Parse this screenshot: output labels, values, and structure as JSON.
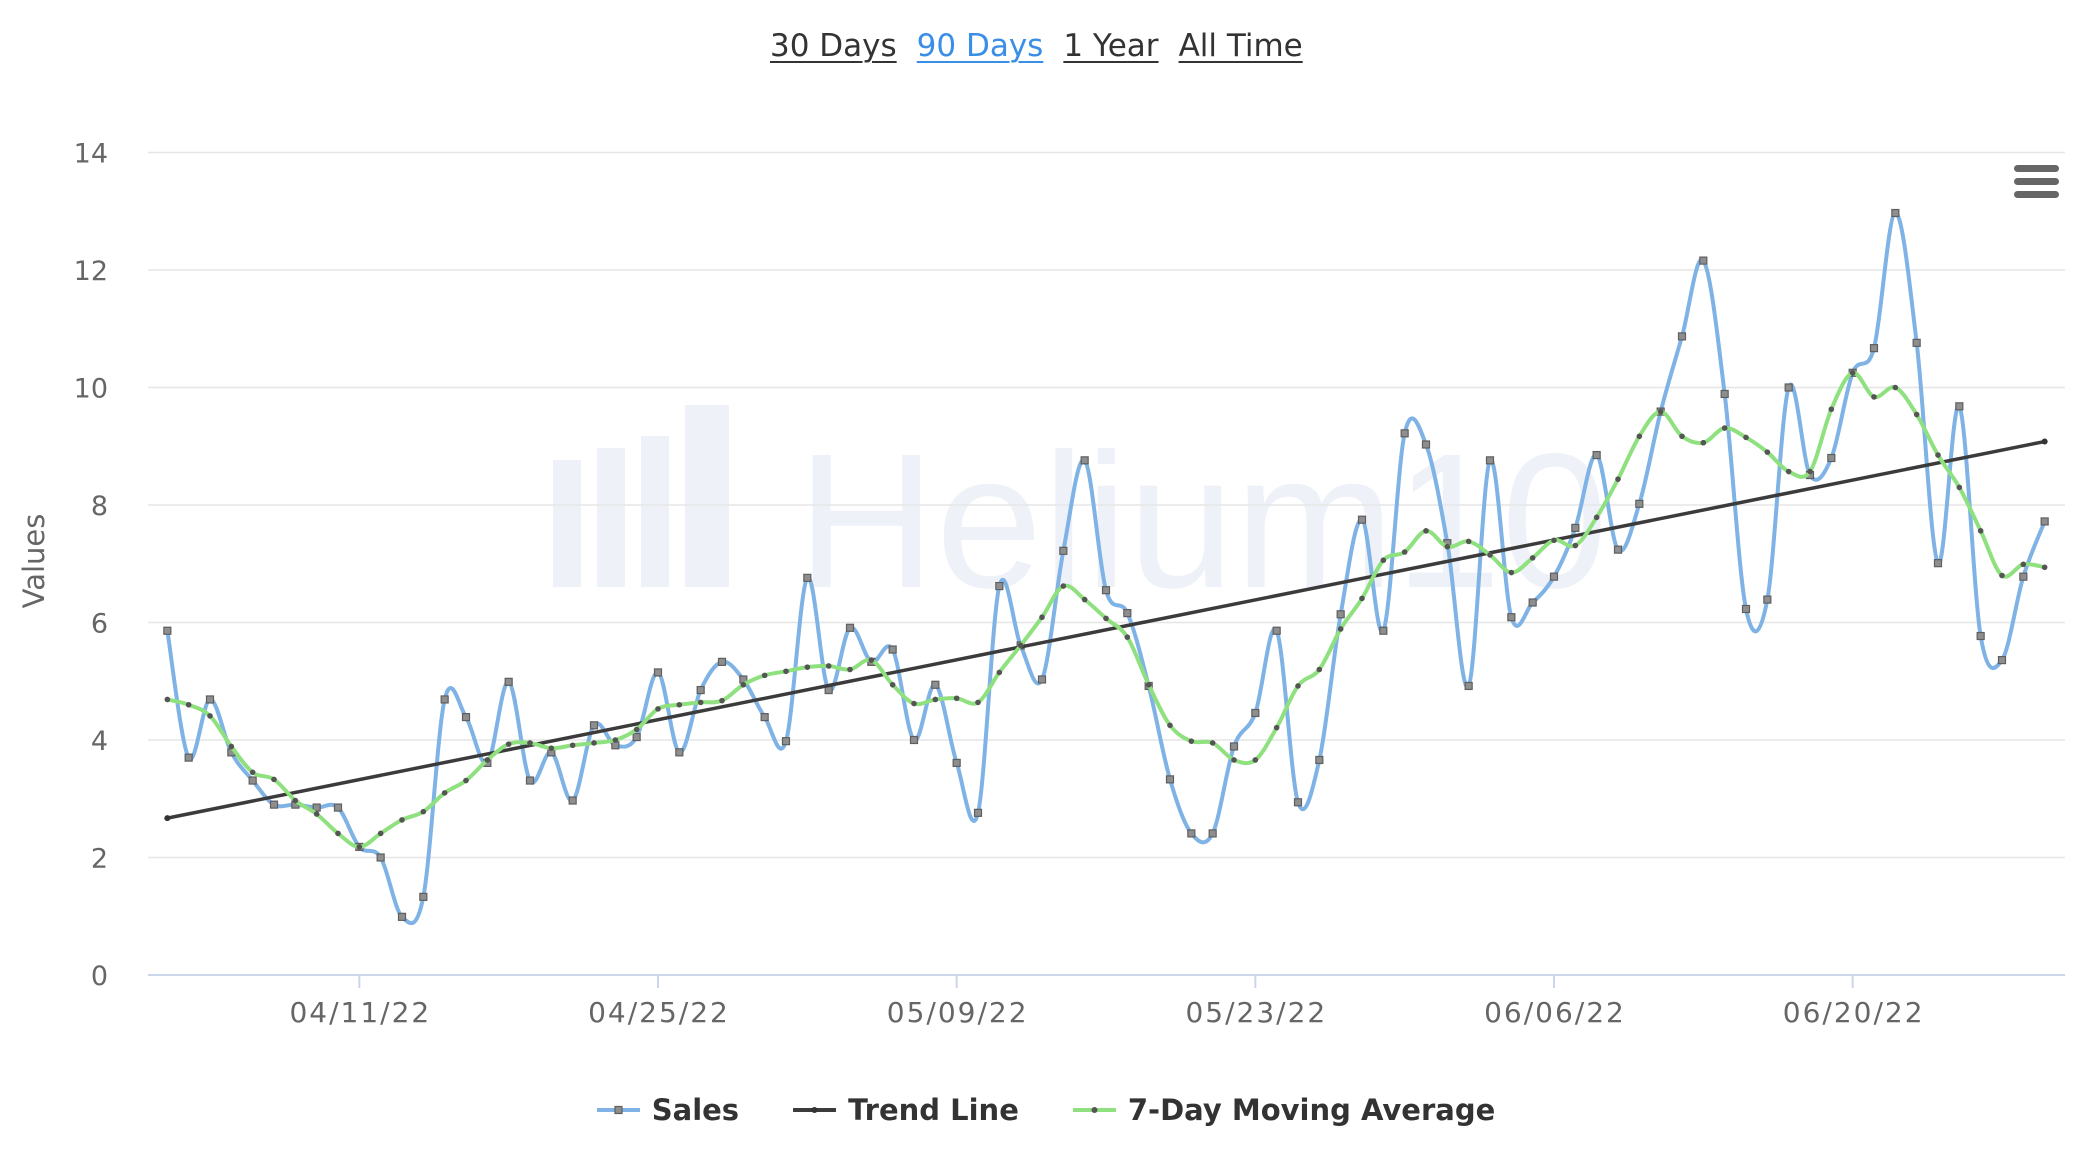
{
  "range_selector": {
    "buttons": [
      {
        "label": "30 Days",
        "selected": false
      },
      {
        "label": "90 Days",
        "selected": true
      },
      {
        "label": "1 Year",
        "selected": false
      },
      {
        "label": "All Time",
        "selected": false
      }
    ]
  },
  "colors": {
    "range_button": "#333333",
    "range_button_selected": "#3a8ee6"
  },
  "chart_menu": {
    "icon": "hamburger-menu-icon"
  },
  "watermark": {
    "text": "Helium10",
    "icon": "bar-chart-logo-icon"
  },
  "chart_data": {
    "type": "line",
    "xlabel": "",
    "ylabel": "Values",
    "ylim": [
      0,
      14
    ],
    "yticks": [
      0,
      2,
      4,
      6,
      8,
      10,
      12,
      14
    ],
    "xlim": [
      "04/01/22",
      "06/30/22"
    ],
    "xticks": [
      "04/11/22",
      "04/25/22",
      "05/09/22",
      "05/23/22",
      "06/06/22",
      "06/20/22"
    ],
    "grid": true,
    "legend": "bottom-center",
    "x": [
      "04/02/22",
      "04/03/22",
      "04/04/22",
      "04/05/22",
      "04/06/22",
      "04/07/22",
      "04/08/22",
      "04/09/22",
      "04/10/22",
      "04/11/22",
      "04/12/22",
      "04/13/22",
      "04/14/22",
      "04/15/22",
      "04/16/22",
      "04/17/22",
      "04/18/22",
      "04/19/22",
      "04/20/22",
      "04/21/22",
      "04/22/22",
      "04/23/22",
      "04/24/22",
      "04/25/22",
      "04/26/22",
      "04/27/22",
      "04/28/22",
      "04/29/22",
      "04/30/22",
      "05/01/22",
      "05/02/22",
      "05/03/22",
      "05/04/22",
      "05/05/22",
      "05/06/22",
      "05/07/22",
      "05/08/22",
      "05/09/22",
      "05/10/22",
      "05/11/22",
      "05/12/22",
      "05/13/22",
      "05/14/22",
      "05/15/22",
      "05/16/22",
      "05/17/22",
      "05/18/22",
      "05/19/22",
      "05/20/22",
      "05/21/22",
      "05/22/22",
      "05/23/22",
      "05/24/22",
      "05/25/22",
      "05/26/22",
      "05/27/22",
      "05/28/22",
      "05/29/22",
      "05/30/22",
      "05/31/22",
      "06/01/22",
      "06/02/22",
      "06/03/22",
      "06/04/22",
      "06/05/22",
      "06/06/22",
      "06/07/22",
      "06/08/22",
      "06/09/22",
      "06/10/22",
      "06/11/22",
      "06/12/22",
      "06/13/22",
      "06/14/22",
      "06/15/22",
      "06/16/22",
      "06/17/22",
      "06/18/22",
      "06/19/22",
      "06/20/22",
      "06/21/22",
      "06/22/22",
      "06/23/22",
      "06/24/22",
      "06/25/22",
      "06/26/22",
      "06/27/22",
      "06/28/22",
      "06/29/22"
    ],
    "series": [
      {
        "name": "Sales",
        "color": "#7fb2e5",
        "values": [
          5.86,
          3.7,
          4.69,
          3.79,
          3.31,
          2.9,
          2.9,
          2.85,
          2.85,
          2.18,
          2.0,
          0.99,
          1.33,
          4.69,
          4.39,
          3.61,
          4.99,
          3.31,
          3.79,
          2.97,
          4.25,
          3.91,
          4.05,
          5.15,
          3.79,
          4.85,
          5.33,
          5.03,
          4.39,
          3.98,
          6.76,
          4.85,
          5.91,
          5.33,
          5.54,
          4.0,
          4.94,
          3.61,
          2.76,
          6.62,
          5.61,
          5.03,
          7.22,
          8.76,
          6.55,
          6.16,
          4.92,
          3.33,
          2.41,
          2.41,
          3.89,
          4.46,
          5.86,
          2.94,
          3.66,
          6.14,
          7.75,
          5.86,
          9.22,
          9.03,
          7.35,
          4.92,
          8.76,
          6.09,
          6.34,
          6.78,
          7.61,
          8.85,
          7.24,
          8.02,
          9.59,
          10.87,
          12.16,
          9.89,
          6.23,
          6.39,
          10.0,
          8.51,
          8.8,
          10.25,
          10.67,
          12.97,
          10.76,
          7.01,
          9.68,
          5.77,
          5.36,
          6.78,
          7.72
        ]
      },
      {
        "name": "Trend Line",
        "color": "#3b3b3b",
        "x": [
          "04/02/22",
          "06/29/22"
        ],
        "values": [
          2.67,
          9.08
        ]
      },
      {
        "name": "7-Day Moving Average",
        "color": "#8fe07e",
        "values": [
          4.69,
          4.6,
          4.41,
          3.89,
          3.45,
          3.33,
          2.97,
          2.74,
          2.41,
          2.18,
          2.41,
          2.64,
          2.78,
          3.1,
          3.31,
          3.66,
          3.93,
          3.95,
          3.86,
          3.91,
          3.95,
          4.0,
          4.18,
          4.53,
          4.6,
          4.64,
          4.67,
          4.94,
          5.1,
          5.17,
          5.24,
          5.26,
          5.2,
          5.36,
          4.94,
          4.62,
          4.69,
          4.71,
          4.64,
          5.15,
          5.61,
          6.09,
          6.62,
          6.39,
          6.07,
          5.75,
          4.94,
          4.25,
          3.98,
          3.95,
          3.66,
          3.66,
          4.21,
          4.92,
          5.2,
          5.89,
          6.41,
          7.06,
          7.2,
          7.56,
          7.29,
          7.38,
          7.15,
          6.85,
          7.1,
          7.4,
          7.31,
          7.79,
          8.44,
          9.17,
          9.59,
          9.17,
          9.06,
          9.31,
          9.15,
          8.9,
          8.57,
          8.57,
          9.63,
          10.25,
          9.84,
          10.0,
          9.54,
          8.85,
          8.3,
          7.56,
          6.8,
          6.99,
          6.94
        ]
      }
    ]
  }
}
